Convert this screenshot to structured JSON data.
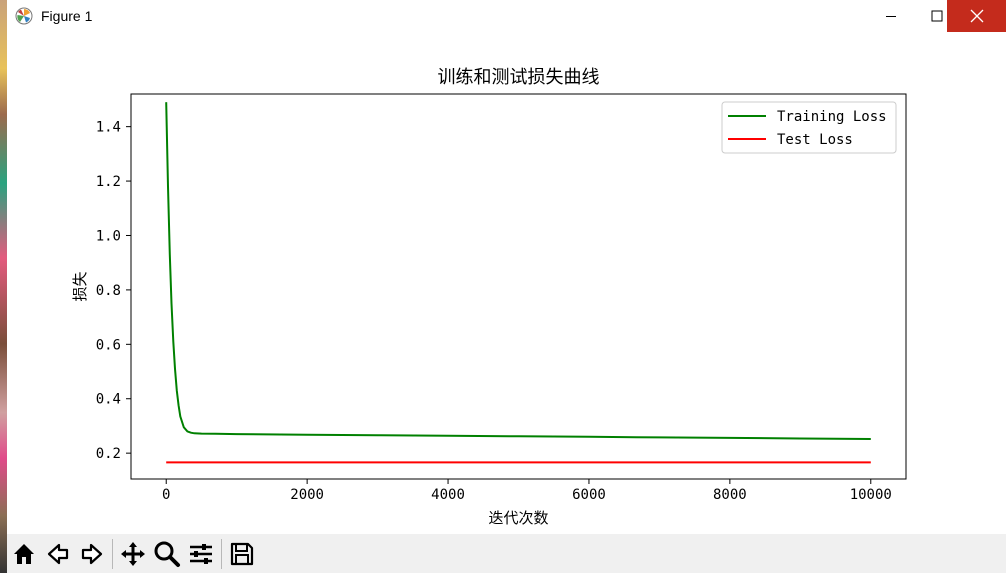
{
  "window": {
    "title": "Figure 1",
    "close_tooltip": "关闭"
  },
  "toolbar": {
    "buttons": [
      {
        "name": "home-button",
        "icon": "home-icon"
      },
      {
        "name": "back-button",
        "icon": "arrow-left-icon"
      },
      {
        "name": "forward-button",
        "icon": "arrow-right-icon"
      },
      {
        "name": "pan-button",
        "icon": "move-icon"
      },
      {
        "name": "zoom-button",
        "icon": "zoom-icon"
      },
      {
        "name": "configure-button",
        "icon": "sliders-icon"
      },
      {
        "name": "save-button",
        "icon": "save-icon"
      }
    ]
  },
  "chart_data": {
    "type": "line",
    "title": "训练和测试损失曲线",
    "xlabel": "迭代次数",
    "ylabel": "损失",
    "xlim": [
      -500,
      10500
    ],
    "ylim": [
      0.105,
      1.52
    ],
    "xticks": [
      0,
      2000,
      4000,
      6000,
      8000,
      10000
    ],
    "xtick_labels": [
      "0",
      "2000",
      "4000",
      "6000",
      "8000",
      "10000"
    ],
    "yticks": [
      0.2,
      0.4,
      0.6,
      0.8,
      1.0,
      1.2,
      1.4
    ],
    "ytick_labels": [
      "0.2",
      "0.4",
      "0.6",
      "0.8",
      "1.0",
      "1.2",
      "1.4"
    ],
    "grid": false,
    "legend_position": "upper right",
    "series": [
      {
        "name": "Training Loss",
        "color": "#008000",
        "x": [
          0,
          25,
          50,
          75,
          100,
          125,
          150,
          175,
          200,
          250,
          300,
          350,
          400,
          500,
          700,
          1000,
          2000,
          3000,
          4000,
          5000,
          6000,
          7000,
          8000,
          9000,
          10000
        ],
        "y": [
          1.49,
          1.18,
          0.93,
          0.75,
          0.61,
          0.51,
          0.43,
          0.375,
          0.335,
          0.295,
          0.28,
          0.275,
          0.273,
          0.272,
          0.271,
          0.27,
          0.268,
          0.266,
          0.264,
          0.262,
          0.26,
          0.258,
          0.256,
          0.254,
          0.252
        ]
      },
      {
        "name": "Test Loss",
        "color": "#ff0000",
        "x": [
          0,
          10000
        ],
        "y": [
          0.166,
          0.166
        ]
      }
    ]
  }
}
